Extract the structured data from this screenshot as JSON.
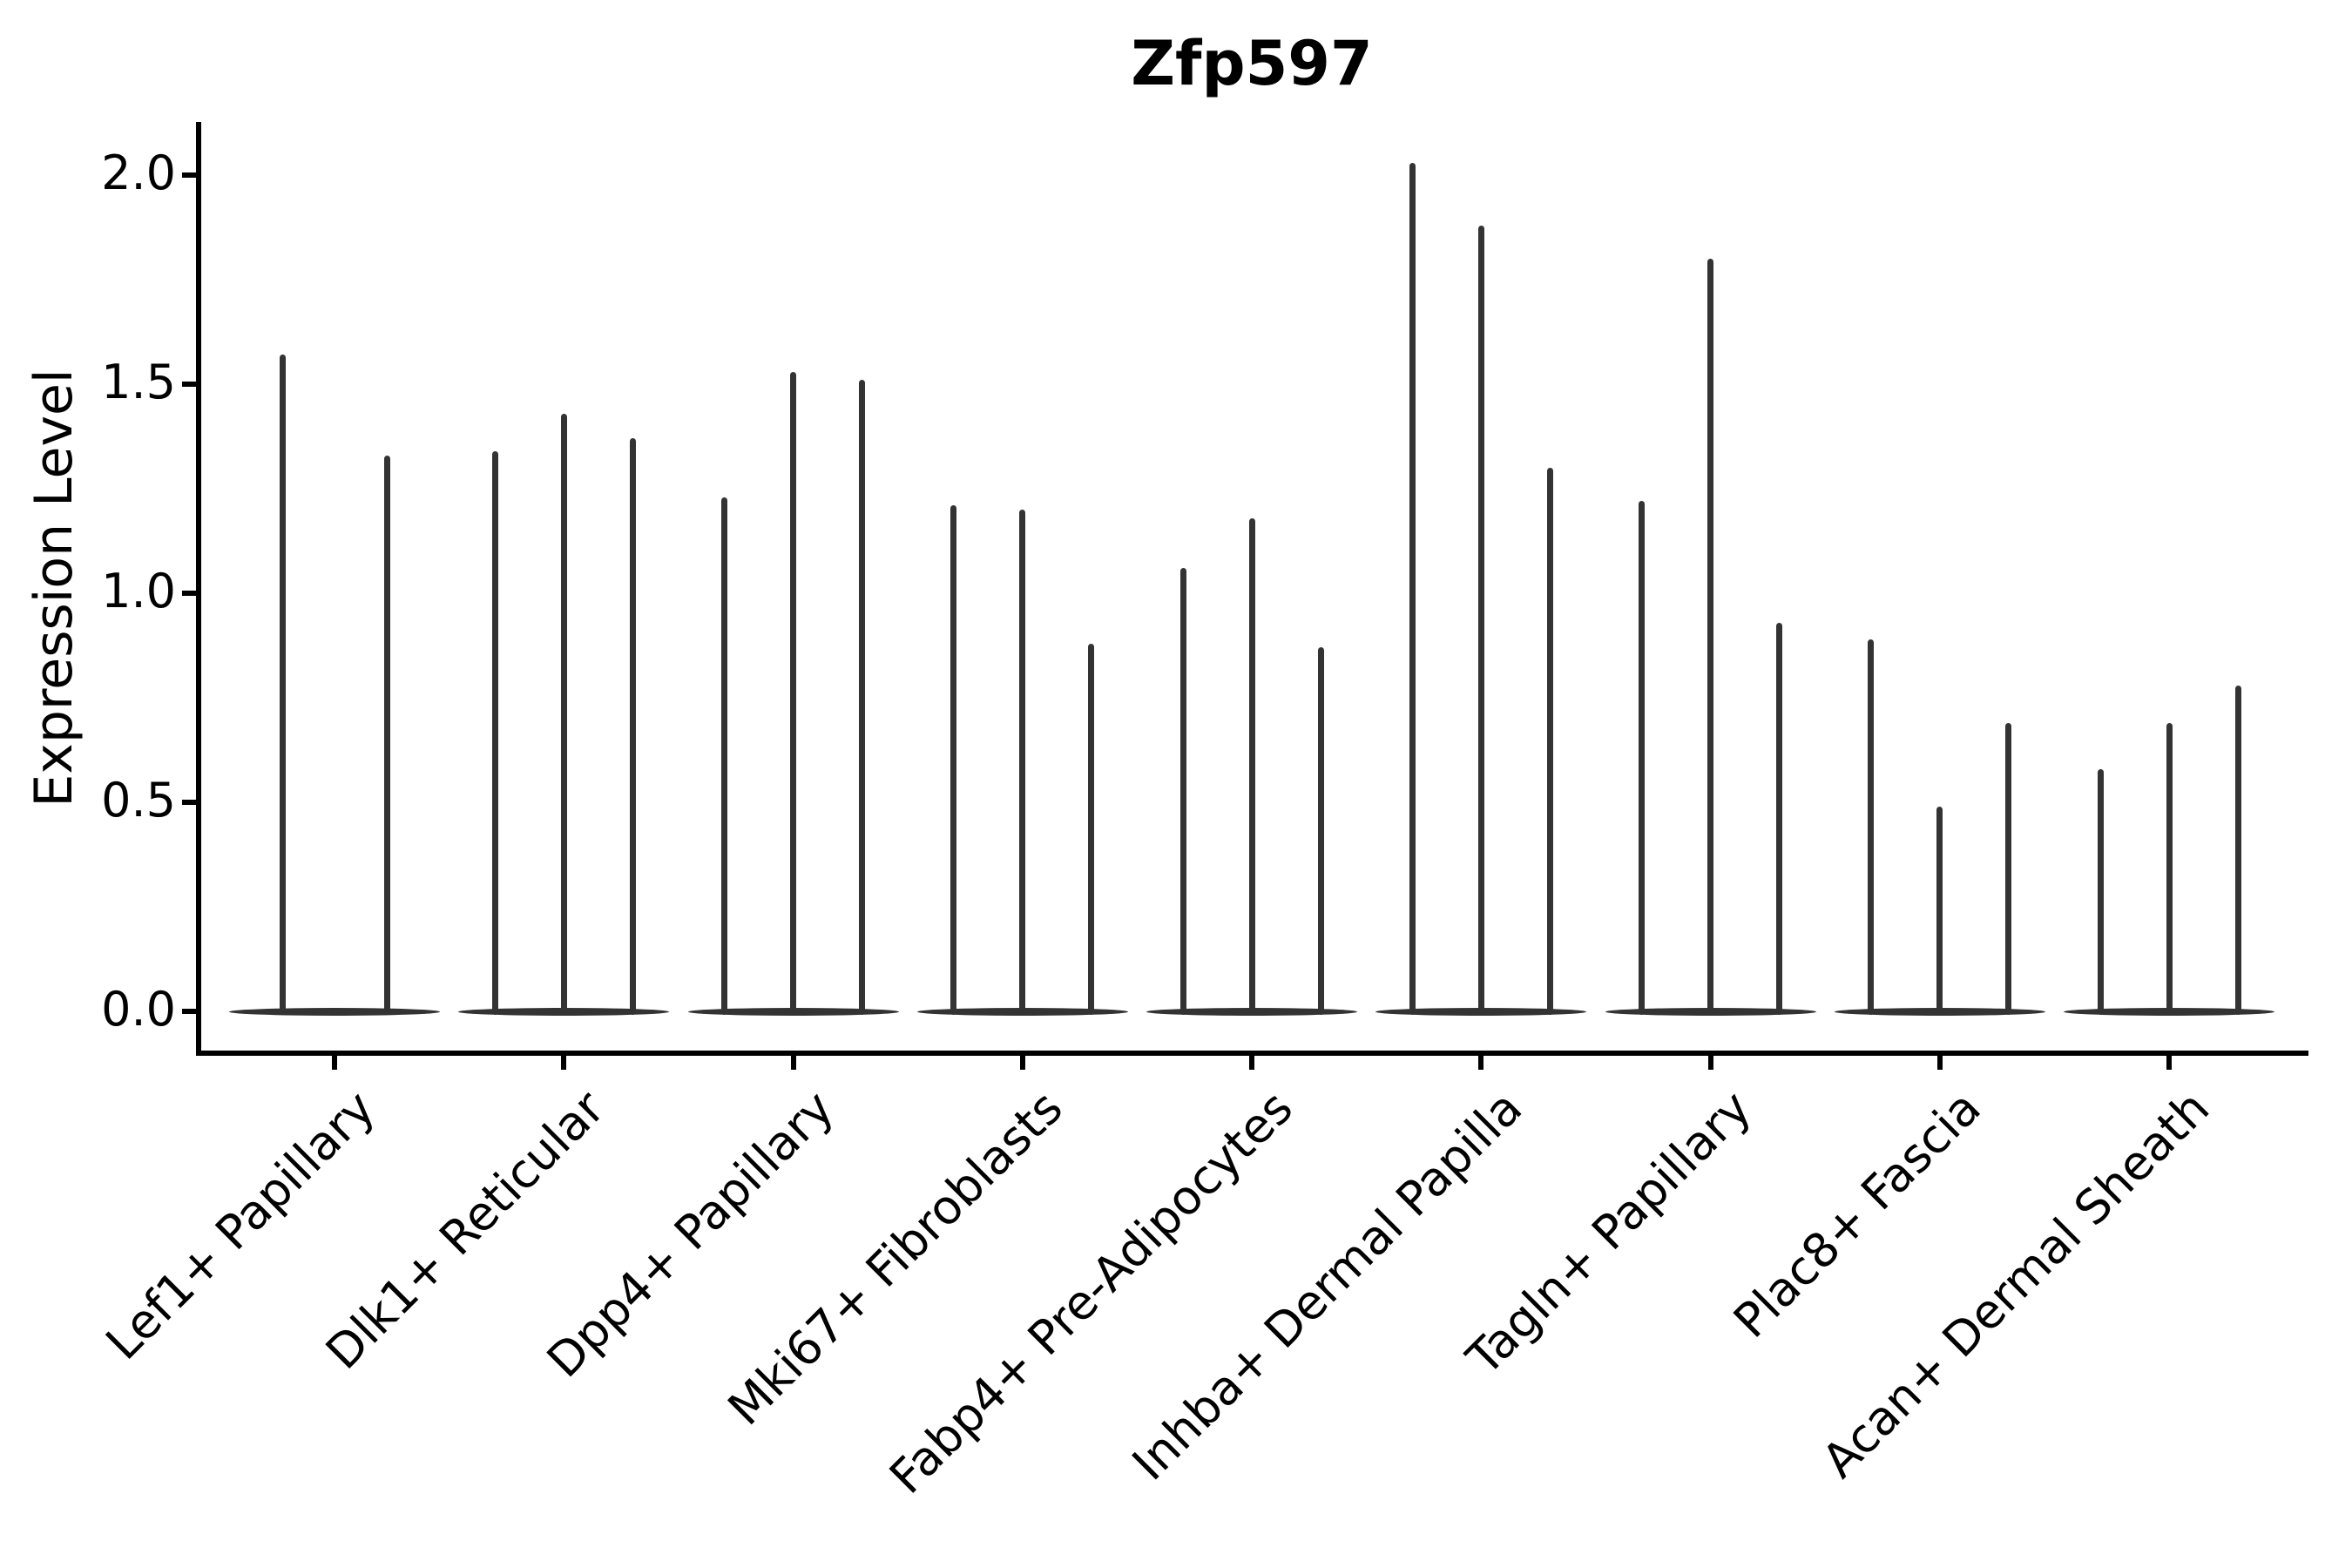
{
  "chart_data": {
    "type": "violin",
    "title": "Zfp597",
    "ylabel": "Expression Level",
    "xlabel": "",
    "ytick_labels": [
      "0.0",
      "0.5",
      "1.0",
      "1.5",
      "2.0"
    ],
    "ytick_values": [
      0.0,
      0.5,
      1.0,
      1.5,
      2.0
    ],
    "ylim": [
      -0.1,
      2.25
    ],
    "grid": false,
    "legend": null,
    "categories": [
      "Lef1+ Papillary",
      "Dlk1+ Reticular",
      "Dpp4+ Papillary",
      "Mki67+ Fibroblasts",
      "Fabp4+ Pre-Adipocytes",
      "Inhba+ Dermal Papilla",
      "Tagln+ Papillary",
      "Plac8+ Fascia",
      "Acan+ Dermal Sheath"
    ],
    "violin_description": "each category holds 2-3 extremely thin violins: a flat density bulge at expression 0 with a narrow spike rising to the max expression value",
    "violin_max_heights": [
      [
        1.57,
        1.33
      ],
      [
        1.34,
        1.43,
        1.37
      ],
      [
        1.23,
        1.53,
        1.51
      ],
      [
        1.21,
        1.2,
        0.88
      ],
      [
        1.06,
        1.18,
        0.87
      ],
      [
        2.03,
        1.88,
        1.3
      ],
      [
        1.22,
        1.8,
        0.93
      ],
      [
        0.89,
        0.49,
        0.69
      ],
      [
        0.58,
        0.69,
        0.78
      ]
    ],
    "baseline_value": 0.0,
    "colors": {
      "violin": "#333333",
      "axis": "#000000",
      "text": "#000000",
      "background": "#ffffff"
    }
  }
}
